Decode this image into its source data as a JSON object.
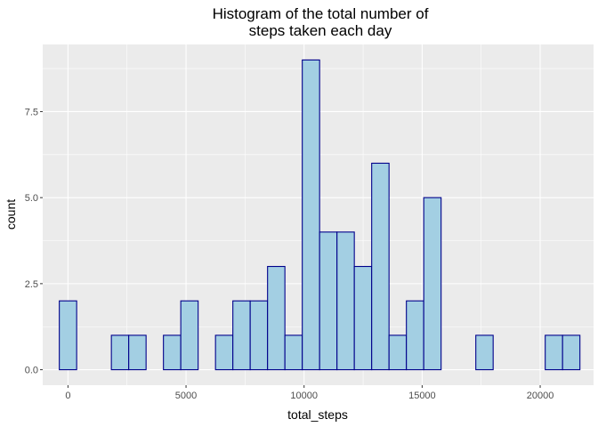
{
  "chart_data": {
    "type": "bar",
    "title_lines": [
      "Histogram of the total number of",
      "steps taken each day"
    ],
    "xlabel": "total_steps",
    "ylabel": "count",
    "xlim": [
      -1070,
      22260
    ],
    "ylim": [
      -0.45,
      9.45
    ],
    "xticks": [
      0,
      5000,
      10000,
      15000,
      20000
    ],
    "xtick_labels": [
      "0",
      "5000",
      "10000",
      "15000",
      "20000"
    ],
    "yticks": [
      0,
      2.5,
      5,
      7.5
    ],
    "ytick_labels": [
      "0.0",
      "2.5",
      "5.0",
      "7.5"
    ],
    "x_minor_ticks": [
      2500,
      7500,
      12500,
      17500
    ],
    "y_minor_ticks": [
      1.25,
      3.75,
      6.25,
      8.75
    ],
    "bin_width": 735,
    "bin_start": -367,
    "values": [
      2,
      0,
      0,
      1,
      1,
      0,
      1,
      2,
      0,
      1,
      2,
      2,
      3,
      1,
      9,
      4,
      4,
      3,
      6,
      1,
      2,
      5,
      0,
      0,
      1,
      0,
      0,
      0,
      1,
      1
    ],
    "grid": true,
    "colors": {
      "panel": "#ebebeb",
      "grid_major": "#ffffff",
      "bar_fill": "#a3cfe3",
      "bar_stroke": "#00008b",
      "tick": "#333333"
    }
  }
}
